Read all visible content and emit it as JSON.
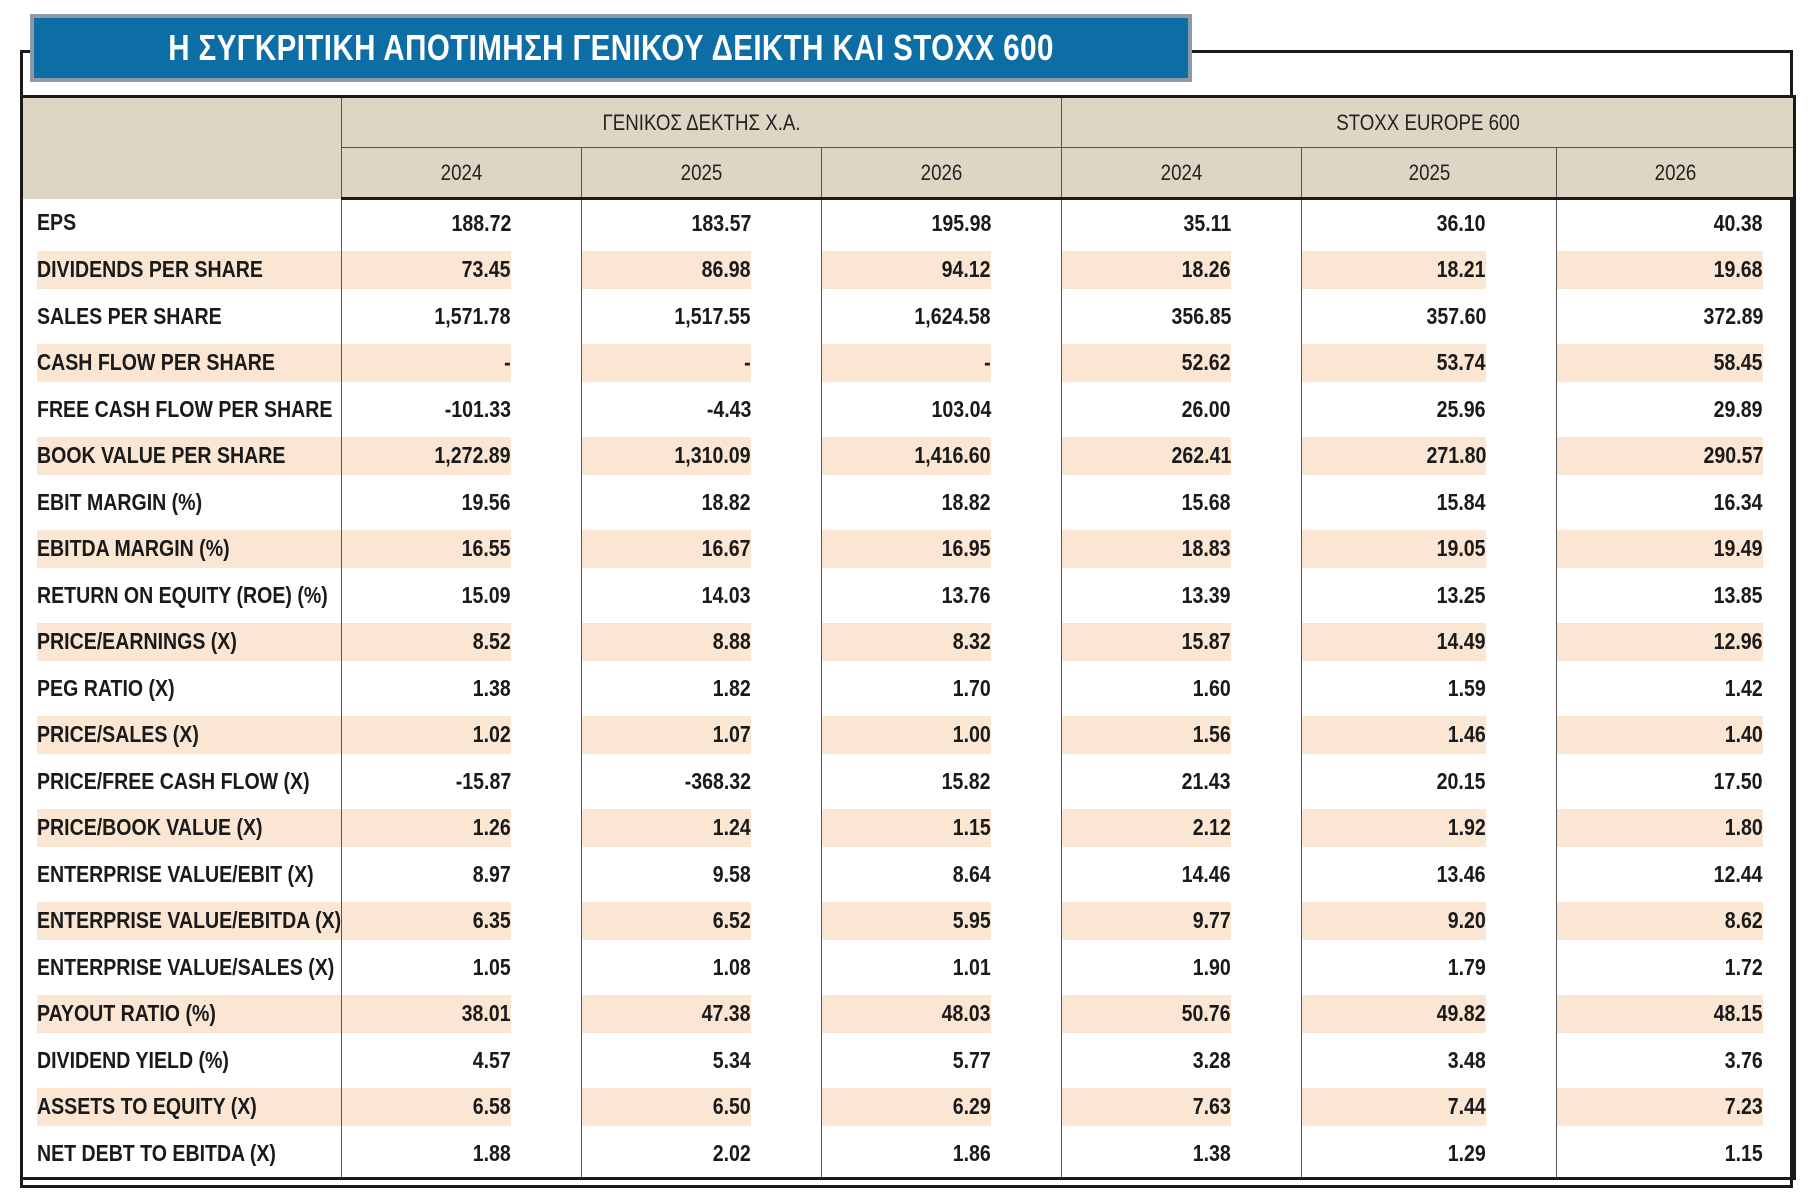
{
  "title": "Η ΣΥΓΚΡΙΤΙΚΗ ΑΠΟΤΙΜΗΣΗ ΓΕΝΙΚΟΥ ΔΕΙΚΤΗ ΚΑΙ STOXX 600",
  "groups": [
    "ΓΕΝΙΚΟΣ ΔΕΚΤΗΣ Χ.Α.",
    "STOXX EUROPE 600"
  ],
  "years": [
    "2024",
    "2025",
    "2026",
    "2024",
    "2025",
    "2026"
  ],
  "rows": [
    {
      "label": "EPS",
      "values": [
        "188.72",
        "183.57",
        "195.98",
        "35.11",
        "36.10",
        "40.38"
      ]
    },
    {
      "label": "DIVIDENDS PER SHARE",
      "values": [
        "73.45",
        "86.98",
        "94.12",
        "18.26",
        "18.21",
        "19.68"
      ]
    },
    {
      "label": "SALES PER SHARE",
      "values": [
        "1,571.78",
        "1,517.55",
        "1,624.58",
        "356.85",
        "357.60",
        "372.89"
      ]
    },
    {
      "label": "CASH FLOW PER SHARE",
      "values": [
        "-",
        "-",
        "-",
        "52.62",
        "53.74",
        "58.45"
      ]
    },
    {
      "label": "FREE CASH FLOW PER SHARE",
      "values": [
        "-101.33",
        "-4.43",
        "103.04",
        "26.00",
        "25.96",
        "29.89"
      ]
    },
    {
      "label": "BOOK VALUE PER SHARE",
      "values": [
        "1,272.89",
        "1,310.09",
        "1,416.60",
        "262.41",
        "271.80",
        "290.57"
      ]
    },
    {
      "label": "EBIT MARGIN (%)",
      "values": [
        "19.56",
        "18.82",
        "18.82",
        "15.68",
        "15.84",
        "16.34"
      ]
    },
    {
      "label": "EBITDA MARGIN (%)",
      "values": [
        "16.55",
        "16.67",
        "16.95",
        "18.83",
        "19.05",
        "19.49"
      ]
    },
    {
      "label": "RETURN ON EQUITY (ROE) (%)",
      "values": [
        "15.09",
        "14.03",
        "13.76",
        "13.39",
        "13.25",
        "13.85"
      ]
    },
    {
      "label": "PRICE/EARNINGS (X)",
      "values": [
        "8.52",
        "8.88",
        "8.32",
        "15.87",
        "14.49",
        "12.96"
      ]
    },
    {
      "label": "PEG RATIO (X)",
      "values": [
        "1.38",
        "1.82",
        "1.70",
        "1.60",
        "1.59",
        "1.42"
      ]
    },
    {
      "label": "PRICE/SALES (X)",
      "values": [
        "1.02",
        "1.07",
        "1.00",
        "1.56",
        "1.46",
        "1.40"
      ]
    },
    {
      "label": "PRICE/FREE CASH FLOW (X)",
      "values": [
        "-15.87",
        "-368.32",
        "15.82",
        "21.43",
        "20.15",
        "17.50"
      ]
    },
    {
      "label": "PRICE/BOOK VALUE (X)",
      "values": [
        "1.26",
        "1.24",
        "1.15",
        "2.12",
        "1.92",
        "1.80"
      ]
    },
    {
      "label": "ENTERPRISE VALUE/EBIT (X)",
      "values": [
        "8.97",
        "9.58",
        "8.64",
        "14.46",
        "13.46",
        "12.44"
      ]
    },
    {
      "label": "ENTERPRISE VALUE/EBITDA (X)",
      "values": [
        "6.35",
        "6.52",
        "5.95",
        "9.77",
        "9.20",
        "8.62"
      ]
    },
    {
      "label": "ENTERPRISE VALUE/SALES (X)",
      "values": [
        "1.05",
        "1.08",
        "1.01",
        "1.90",
        "1.79",
        "1.72"
      ]
    },
    {
      "label": "PAYOUT RATIO (%)",
      "values": [
        "38.01",
        "47.38",
        "48.03",
        "50.76",
        "49.82",
        "48.15"
      ]
    },
    {
      "label": "DIVIDEND YIELD (%)",
      "values": [
        "4.57",
        "5.34",
        "5.77",
        "3.28",
        "3.48",
        "3.76"
      ]
    },
    {
      "label": "ASSETS TO EQUITY (X)",
      "values": [
        "6.58",
        "6.50",
        "6.29",
        "7.63",
        "7.44",
        "7.23"
      ]
    },
    {
      "label": "NET DEBT TO EBITDA (X)",
      "values": [
        "1.88",
        "2.02",
        "1.86",
        "1.38",
        "1.29",
        "1.15"
      ]
    }
  ],
  "colors": {
    "title_bg": "#0d6ea6",
    "header_bg": "#ddd6c4",
    "stripe_bg": "#fbe6d3"
  }
}
